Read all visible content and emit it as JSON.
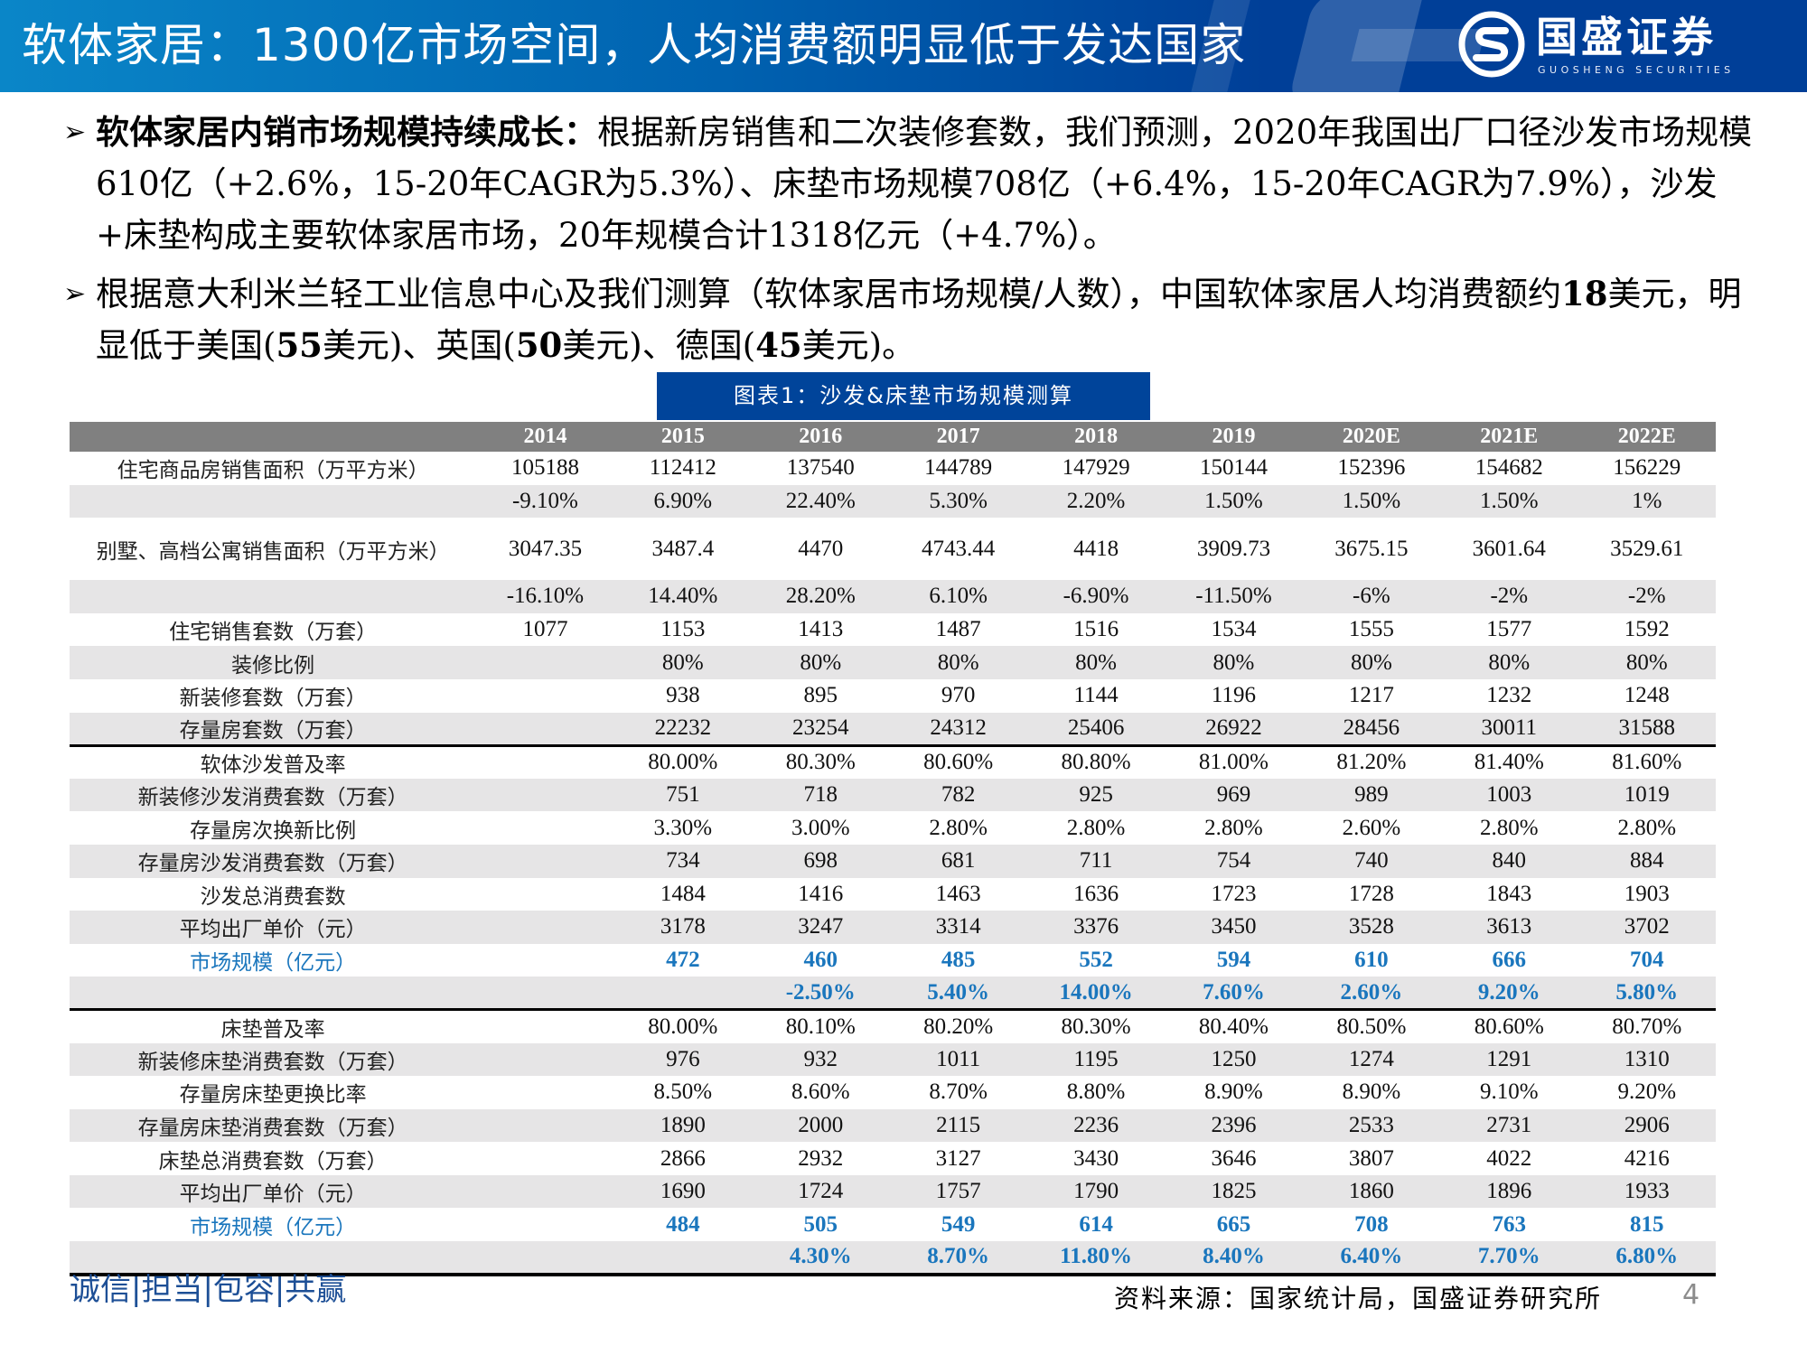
{
  "header": {
    "title": "软体家居：1300亿市场空间，人均消费额明显低于发达国家",
    "logo_cn": "国盛证券",
    "logo_en": "GUOSHENG SECURITIES",
    "logo_icon": "guosheng-s-logo-icon"
  },
  "bullets": [
    {
      "icon": "triangle-arrow-right-icon",
      "bold_lead": "软体家居内销市场规模持续成长：",
      "text": "根据新房销售和二次装修套数，我们预测，2020年我国出厂口径沙发市场规模610亿（+2.6%，15-20年CAGR为5.3%）、床垫市场规模708亿（+6.4%，15-20年CAGR为7.9%），沙发+床垫构成主要软体家居市场，20年规模合计1318亿元（+4.7%）。"
    },
    {
      "icon": "triangle-arrow-right-icon",
      "text_1": "根据意大利米兰轻工业信息中心及我们测算（软体家居市场规模/人数），中国软体家居人均消费额约",
      "bold_1": "18",
      "text_2": "美元，明显低于美国(",
      "bold_2": "55",
      "text_3": "美元)、英国(",
      "bold_3": "50",
      "text_4": "美元)、德国(",
      "bold_4": "45",
      "text_5": "美元)。"
    }
  ],
  "caption": "图表1：沙发&床垫市场规模测算",
  "table": {
    "columns": [
      "",
      "2014",
      "2015",
      "2016",
      "2017",
      "2018",
      "2019",
      "2020E",
      "2021E",
      "2022E"
    ],
    "rows": [
      {
        "label": "住宅商品房销售面积（万平方米）",
        "values": [
          "105188",
          "112412",
          "137540",
          "144789",
          "147929",
          "150144",
          "152396",
          "154682",
          "156229"
        ]
      },
      {
        "label": "",
        "values": [
          "-9.10%",
          "6.90%",
          "22.40%",
          "5.30%",
          "2.20%",
          "1.50%",
          "1.50%",
          "1.50%",
          "1%"
        ]
      },
      {
        "label": "别墅、高档公寓销售面积（万平方米）",
        "values": [
          "3047.35",
          "3487.4",
          "4470",
          "4743.44",
          "4418",
          "3909.73",
          "3675.15",
          "3601.64",
          "3529.61"
        ]
      },
      {
        "label": "",
        "values": [
          "-16.10%",
          "14.40%",
          "28.20%",
          "6.10%",
          "-6.90%",
          "-11.50%",
          "-6%",
          "-2%",
          "-2%"
        ]
      },
      {
        "label": "住宅销售套数（万套）",
        "values": [
          "1077",
          "1153",
          "1413",
          "1487",
          "1516",
          "1534",
          "1555",
          "1577",
          "1592"
        ]
      },
      {
        "label": "装修比例",
        "values": [
          "",
          "80%",
          "80%",
          "80%",
          "80%",
          "80%",
          "80%",
          "80%",
          "80%"
        ]
      },
      {
        "label": "新装修套数（万套）",
        "values": [
          "",
          "938",
          "895",
          "970",
          "1144",
          "1196",
          "1217",
          "1232",
          "1248"
        ]
      },
      {
        "label": "存量房套数（万套）",
        "values": [
          "",
          "22232",
          "23254",
          "24312",
          "25406",
          "26922",
          "28456",
          "30011",
          "31588"
        ]
      },
      {
        "label": "软体沙发普及率",
        "values": [
          "",
          "80.00%",
          "80.30%",
          "80.60%",
          "80.80%",
          "81.00%",
          "81.20%",
          "81.40%",
          "81.60%"
        ]
      },
      {
        "label": "新装修沙发消费套数（万套）",
        "values": [
          "",
          "751",
          "718",
          "782",
          "925",
          "969",
          "989",
          "1003",
          "1019"
        ]
      },
      {
        "label": "存量房次换新比例",
        "values": [
          "",
          "3.30%",
          "3.00%",
          "2.80%",
          "2.80%",
          "2.80%",
          "2.60%",
          "2.80%",
          "2.80%"
        ]
      },
      {
        "label": "存量房沙发消费套数（万套）",
        "values": [
          "",
          "734",
          "698",
          "681",
          "711",
          "754",
          "740",
          "840",
          "884"
        ]
      },
      {
        "label": "沙发总消费套数",
        "values": [
          "",
          "1484",
          "1416",
          "1463",
          "1636",
          "1723",
          "1728",
          "1843",
          "1903"
        ]
      },
      {
        "label": "平均出厂单价（元）",
        "values": [
          "",
          "3178",
          "3247",
          "3314",
          "3376",
          "3450",
          "3528",
          "3613",
          "3702"
        ]
      },
      {
        "label": "市场规模（亿元）",
        "values": [
          "",
          "472",
          "460",
          "485",
          "552",
          "594",
          "610",
          "666",
          "704"
        ]
      },
      {
        "label": "",
        "values": [
          "",
          "",
          "-2.50%",
          "5.40%",
          "14.00%",
          "7.60%",
          "2.60%",
          "9.20%",
          "5.80%"
        ]
      },
      {
        "label": "床垫普及率",
        "values": [
          "",
          "80.00%",
          "80.10%",
          "80.20%",
          "80.30%",
          "80.40%",
          "80.50%",
          "80.60%",
          "80.70%"
        ]
      },
      {
        "label": "新装修床垫消费套数（万套）",
        "values": [
          "",
          "976",
          "932",
          "1011",
          "1195",
          "1250",
          "1274",
          "1291",
          "1310"
        ]
      },
      {
        "label": "存量房床垫更换比率",
        "values": [
          "",
          "8.50%",
          "8.60%",
          "8.70%",
          "8.80%",
          "8.90%",
          "8.90%",
          "9.10%",
          "9.20%"
        ]
      },
      {
        "label": "存量房床垫消费套数（万套）",
        "values": [
          "",
          "1890",
          "2000",
          "2115",
          "2236",
          "2396",
          "2533",
          "2731",
          "2906"
        ]
      },
      {
        "label": "床垫总消费套数（万套）",
        "values": [
          "",
          "2866",
          "2932",
          "3127",
          "3430",
          "3646",
          "3807",
          "4022",
          "4216"
        ]
      },
      {
        "label": "平均出厂单价（元）",
        "values": [
          "",
          "1690",
          "1724",
          "1757",
          "1790",
          "1825",
          "1860",
          "1896",
          "1933"
        ]
      },
      {
        "label": "市场规模（亿元）",
        "values": [
          "",
          "484",
          "505",
          "549",
          "614",
          "665",
          "708",
          "763",
          "815"
        ]
      },
      {
        "label": "",
        "values": [
          "",
          "",
          "4.30%",
          "8.70%",
          "11.80%",
          "8.40%",
          "6.40%",
          "7.70%",
          "6.80%"
        ]
      }
    ]
  },
  "footer": {
    "slogan": "诚信|担当|包容|共赢",
    "source": "资料来源：国家统计局，国盛证券研究所",
    "page_number": "4"
  },
  "colors": {
    "header_blue_dark": "#003f98",
    "header_blue_light": "#0a86c8",
    "caption_bg": "#00449a",
    "table_header_bg": "#808080",
    "row_stripe": "#e6e5e6",
    "highlight_blue": "#1a76bd",
    "slogan_blue": "#1d4f96"
  }
}
